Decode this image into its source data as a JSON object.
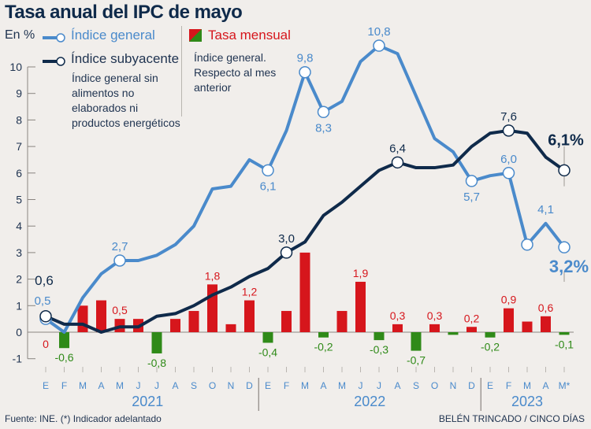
{
  "header": {
    "title": "Tasa anual del IPC de mayo",
    "unit": "En %"
  },
  "legend": {
    "general_label": "Índice general",
    "core_label": "Índice subyacente",
    "core_description": "Índice general sin alimentos no elaborados ni productos energéticos",
    "monthly_label": "Tasa mensual",
    "monthly_description": "Índice general. Respecto al mes anterior"
  },
  "footer": {
    "source": "Fuente: INE. (*) Indicador adelantado",
    "credit": "BELÉN TRINCADO / CINCO DÍAS"
  },
  "colors": {
    "general": "#4a8acb",
    "core": "#0f2a4a",
    "positive": "#d6161c",
    "negative": "#2f8a18",
    "axis": "#8a8580",
    "month_label": "#4a8acb",
    "year_label": "#4a8acb"
  },
  "chart_data": {
    "type": "line",
    "title": "Tasa anual del IPC de mayo",
    "ylabel": "En %",
    "ylim": [
      -1,
      10
    ],
    "yticks": [
      -1,
      0,
      1,
      2,
      3,
      4,
      5,
      6,
      7,
      8,
      9,
      10
    ],
    "grid": false,
    "categories": [
      "E",
      "F",
      "M",
      "A",
      "M",
      "J",
      "J",
      "A",
      "S",
      "O",
      "N",
      "D",
      "E",
      "F",
      "M",
      "A",
      "M",
      "J",
      "J",
      "A",
      "S",
      "O",
      "N",
      "D",
      "E",
      "F",
      "M",
      "A",
      "M*"
    ],
    "years": [
      {
        "label": "2021",
        "start": 0,
        "end": 11
      },
      {
        "label": "2022",
        "start": 12,
        "end": 23
      },
      {
        "label": "2023",
        "start": 24,
        "end": 28
      }
    ],
    "series": [
      {
        "name": "Índice general",
        "type": "line",
        "values": [
          0.5,
          0.0,
          1.3,
          2.2,
          2.7,
          2.7,
          2.9,
          3.3,
          4.0,
          5.4,
          5.5,
          6.5,
          6.1,
          7.6,
          9.8,
          8.3,
          8.7,
          10.2,
          10.8,
          10.5,
          8.9,
          7.3,
          6.8,
          5.7,
          5.9,
          6.0,
          3.3,
          4.1,
          3.2
        ],
        "markers": [
          0,
          4,
          12,
          14,
          15,
          18,
          23,
          25,
          26,
          28
        ],
        "annotations": [
          {
            "index": 0,
            "text": "0,5",
            "pos": "above"
          },
          {
            "index": 4,
            "text": "2,7",
            "pos": "above"
          },
          {
            "index": 12,
            "text": "6,1",
            "pos": "below"
          },
          {
            "index": 14,
            "text": "9,8",
            "pos": "above"
          },
          {
            "index": 15,
            "text": "8,3",
            "pos": "below"
          },
          {
            "index": 18,
            "text": "10,8",
            "pos": "above"
          },
          {
            "index": 23,
            "text": "5,7",
            "pos": "below"
          },
          {
            "index": 25,
            "text": "6,0",
            "pos": "above"
          },
          {
            "index": 27,
            "text": "4,1",
            "pos": "above"
          },
          {
            "index": 28,
            "text": "3,2%",
            "pos": "final-below"
          }
        ]
      },
      {
        "name": "Índice subyacente",
        "type": "line",
        "values": [
          0.6,
          0.3,
          0.3,
          0.0,
          0.2,
          0.2,
          0.6,
          0.7,
          1.0,
          1.4,
          1.7,
          2.1,
          2.4,
          3.0,
          3.4,
          4.4,
          4.9,
          5.5,
          6.1,
          6.4,
          6.2,
          6.2,
          6.3,
          7.0,
          7.5,
          7.6,
          7.5,
          6.6,
          6.1
        ],
        "markers": [
          0,
          13,
          19,
          25,
          28
        ],
        "annotations": [
          {
            "index": 0,
            "text": "0,6",
            "pos": "above"
          },
          {
            "index": 13,
            "text": "3,0",
            "pos": "above"
          },
          {
            "index": 19,
            "text": "6,4",
            "pos": "above"
          },
          {
            "index": 25,
            "text": "7,6",
            "pos": "above"
          },
          {
            "index": 28,
            "text": "6,1%",
            "pos": "final-above"
          }
        ]
      },
      {
        "name": "Tasa mensual",
        "type": "bar",
        "values": [
          0.0,
          -0.6,
          1.0,
          1.2,
          0.5,
          0.5,
          -0.8,
          0.5,
          0.8,
          1.8,
          0.3,
          1.2,
          -0.4,
          0.8,
          3.0,
          -0.2,
          0.8,
          1.9,
          -0.3,
          0.3,
          -0.7,
          0.3,
          -0.1,
          0.2,
          -0.2,
          0.9,
          0.4,
          0.6,
          -0.1
        ],
        "annotations": [
          {
            "index": 0,
            "text": "0"
          },
          {
            "index": 1,
            "text": "-0,6"
          },
          {
            "index": 4,
            "text": "0,5"
          },
          {
            "index": 6,
            "text": "-0,8"
          },
          {
            "index": 9,
            "text": "1,8"
          },
          {
            "index": 11,
            "text": "1,2"
          },
          {
            "index": 12,
            "text": "-0,4"
          },
          {
            "index": 15,
            "text": "-0,2"
          },
          {
            "index": 17,
            "text": "1,9"
          },
          {
            "index": 18,
            "text": "-0,3"
          },
          {
            "index": 19,
            "text": "0,3"
          },
          {
            "index": 20,
            "text": "-0,7"
          },
          {
            "index": 21,
            "text": "0,3"
          },
          {
            "index": 23,
            "text": "0,2"
          },
          {
            "index": 24,
            "text": "-0,2"
          },
          {
            "index": 25,
            "text": "0,9"
          },
          {
            "index": 27,
            "text": "0,6"
          },
          {
            "index": 28,
            "text": "-0,1"
          }
        ]
      }
    ]
  }
}
